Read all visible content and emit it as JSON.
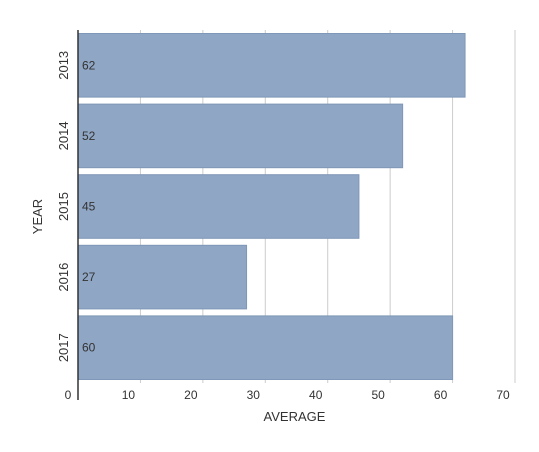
{
  "chart_data": {
    "type": "bar",
    "orientation": "horizontal",
    "categories": [
      "2013",
      "2014",
      "2015",
      "2016",
      "2017"
    ],
    "values": [
      62,
      52,
      45,
      27,
      60
    ],
    "xlabel": "AVERAGE",
    "ylabel": "YEAR",
    "xlim": [
      0,
      70
    ],
    "x_ticks": [
      "0",
      "10",
      "20",
      "30",
      "40",
      "50",
      "60",
      "70"
    ],
    "grid": "vertical",
    "data_labels": true,
    "colors": {
      "bar": "#8fa6c4",
      "bar_edge": "#7f97b8",
      "grid": "#cccccc",
      "axis": "#333333"
    }
  }
}
